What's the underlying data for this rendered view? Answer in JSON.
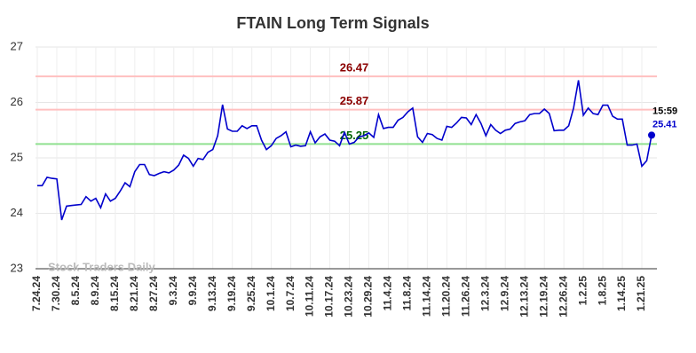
{
  "chart_data": {
    "type": "line",
    "title": "FTAIN Long Term Signals",
    "watermark": "Stock Traders Daily",
    "last_time": "15:59",
    "categories": [
      "7.24.24",
      null,
      null,
      null,
      "7.30.24",
      null,
      null,
      null,
      "8.5.24",
      null,
      null,
      null,
      "8.9.24",
      null,
      null,
      null,
      "8.15.24",
      null,
      null,
      null,
      "8.21.24",
      null,
      null,
      null,
      "8.27.24",
      null,
      null,
      null,
      "9.3.24",
      null,
      null,
      null,
      "9.9.24",
      null,
      null,
      null,
      "9.13.24",
      null,
      null,
      null,
      "9.19.24",
      null,
      null,
      null,
      "9.25.24",
      null,
      null,
      null,
      "10.1.24",
      null,
      null,
      null,
      "10.7.24",
      null,
      null,
      null,
      "10.11.24",
      null,
      null,
      null,
      "10.17.24",
      null,
      null,
      null,
      "10.23.24",
      null,
      null,
      null,
      "10.29.24",
      null,
      null,
      null,
      "11.4.24",
      null,
      null,
      null,
      "11.8.24",
      null,
      null,
      null,
      "11.14.24",
      null,
      null,
      null,
      "11.20.24",
      null,
      null,
      null,
      "11.26.24",
      null,
      null,
      null,
      "12.3.24",
      null,
      null,
      null,
      "12.9.24",
      null,
      null,
      null,
      "12.13.24",
      null,
      null,
      null,
      "12.19.24",
      null,
      null,
      null,
      "12.26.24",
      null,
      null,
      null,
      "1.2.25",
      null,
      null,
      null,
      "1.8.25",
      null,
      null,
      null,
      "1.14.25",
      null,
      null,
      null,
      "1.21.25",
      null,
      null
    ],
    "series": [
      {
        "name": "FTAIN",
        "color": "#0000cc",
        "values": [
          24.5,
          24.5,
          24.65,
          24.63,
          24.62,
          23.88,
          24.13,
          24.14,
          24.15,
          24.16,
          24.3,
          24.22,
          24.27,
          24.1,
          24.35,
          24.22,
          24.27,
          24.4,
          24.55,
          24.48,
          24.75,
          24.88,
          24.88,
          24.7,
          24.68,
          24.72,
          24.75,
          24.73,
          24.78,
          24.87,
          25.05,
          24.99,
          24.85,
          24.99,
          24.97,
          25.1,
          25.15,
          25.4,
          25.96,
          25.52,
          25.48,
          25.48,
          25.58,
          25.53,
          25.58,
          25.58,
          25.32,
          25.15,
          25.22,
          25.35,
          25.4,
          25.47,
          25.2,
          25.23,
          25.21,
          25.22,
          25.47,
          25.27,
          25.38,
          25.43,
          25.32,
          25.3,
          25.22,
          25.46,
          25.25,
          25.28,
          25.38,
          25.4,
          25.45,
          25.37,
          25.78,
          25.53,
          25.55,
          25.55,
          25.68,
          25.73,
          25.83,
          25.9,
          25.38,
          25.28,
          25.44,
          25.42,
          25.35,
          25.32,
          25.57,
          25.55,
          25.63,
          25.73,
          25.72,
          25.6,
          25.78,
          25.62,
          25.4,
          25.6,
          25.5,
          25.44,
          25.5,
          25.52,
          25.62,
          25.65,
          25.67,
          25.78,
          25.8,
          25.8,
          25.88,
          25.8,
          25.49,
          25.5,
          25.5,
          25.58,
          25.9,
          26.4,
          25.77,
          25.9,
          25.8,
          25.78,
          25.95,
          25.95,
          25.75,
          25.7,
          25.7,
          25.23,
          25.23,
          25.25,
          24.85,
          24.95,
          25.41
        ]
      }
    ],
    "hlines": [
      {
        "value": 26.47,
        "color": "#ffc0c0",
        "label_color": "#8b0000"
      },
      {
        "value": 25.87,
        "color": "#ffc0c0",
        "label_color": "#8b0000"
      },
      {
        "value": 25.25,
        "color": "#90e090",
        "label_color": "#006400"
      }
    ],
    "ylim": [
      23,
      27
    ],
    "yticks": [
      23,
      24,
      25,
      26,
      27
    ],
    "grid": true
  }
}
